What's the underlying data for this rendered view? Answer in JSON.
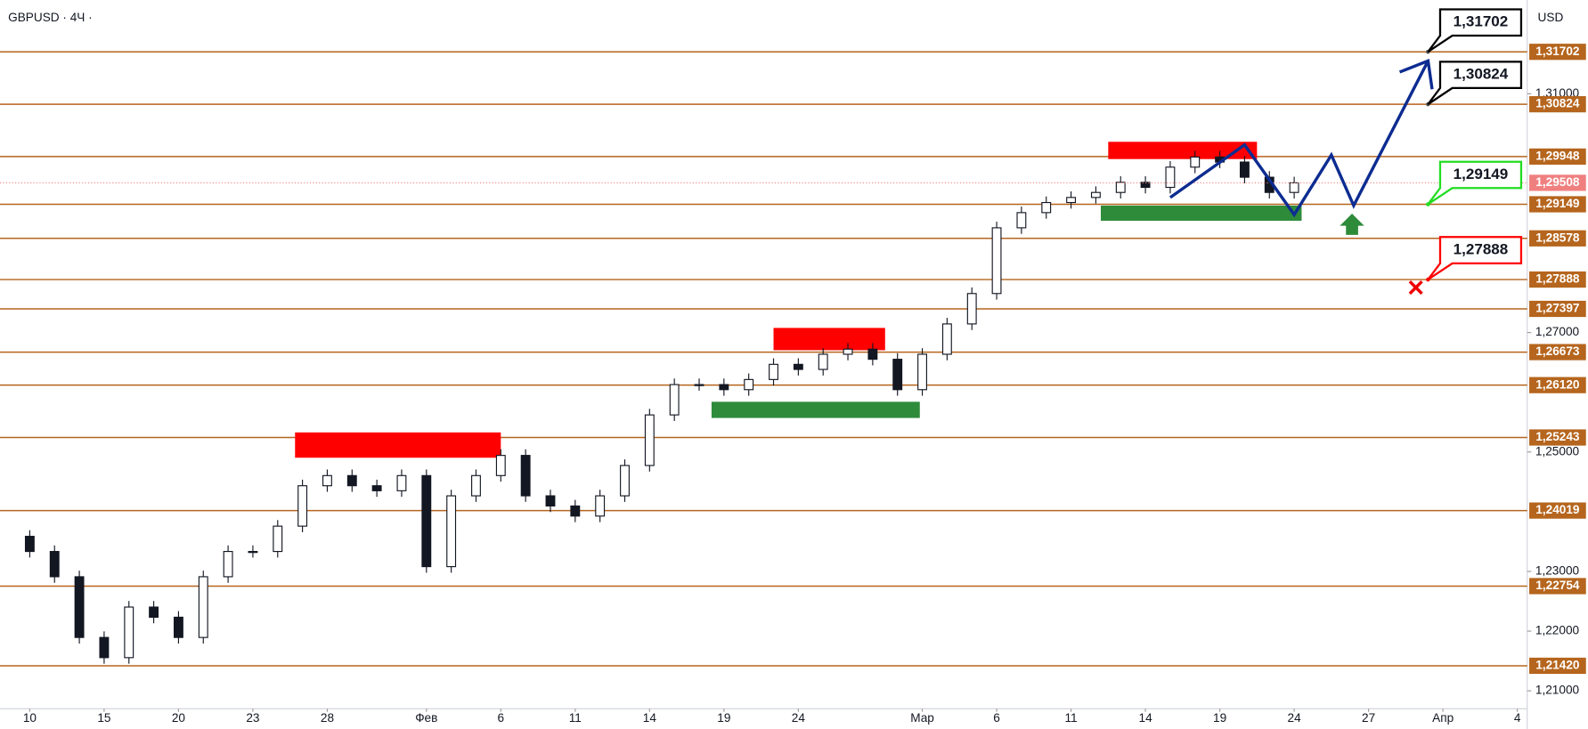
{
  "chart_data": {
    "type": "candlestick",
    "title": "GBPUSD · 4Ч ·",
    "currency": "USD",
    "x": [
      -1,
      0,
      1,
      2,
      3,
      4,
      5,
      6,
      7,
      8,
      9,
      10,
      11,
      12,
      13,
      14,
      15,
      16,
      17,
      18,
      19,
      20,
      21,
      22,
      23,
      24,
      25,
      26,
      27,
      28,
      29,
      30,
      31,
      32,
      33,
      34,
      35,
      36,
      37,
      38,
      39,
      40,
      41,
      42,
      43,
      44,
      45,
      46,
      47,
      48,
      49,
      50,
      51
    ],
    "close": [
      1.23588,
      1.23334,
      1.22911,
      1.21894,
      1.21556,
      1.22403,
      1.22233,
      1.21894,
      1.22911,
      1.23334,
      1.23334,
      1.23758,
      1.24435,
      1.24605,
      1.24435,
      1.24351,
      1.24605,
      1.2308,
      1.24266,
      1.24605,
      1.24943,
      1.24266,
      1.24096,
      1.23927,
      1.24266,
      1.24774,
      1.25621,
      1.26129,
      1.26129,
      1.26044,
      1.26214,
      1.26468,
      1.26383,
      1.26637,
      1.26722,
      1.26553,
      1.26044,
      1.26637,
      1.27145,
      1.27654,
      1.28755,
      1.29009,
      1.29178,
      1.29263,
      1.29347,
      1.29517,
      1.29432,
      1.29771,
      1.2994,
      1.29856,
      1.29602,
      1.29347,
      1.29508
    ],
    "up_color": "#ffffff",
    "down_color": "#131722",
    "xlim": [
      -1.2,
      60.4
    ],
    "ylim": [
      1.207,
      1.3257
    ],
    "xticks": [
      {
        "value": 0,
        "label": "10"
      },
      {
        "value": 3,
        "label": "15"
      },
      {
        "value": 6,
        "label": "20"
      },
      {
        "value": 9,
        "label": "23"
      },
      {
        "value": 12,
        "label": "28"
      },
      {
        "value": 16,
        "label": "Фев"
      },
      {
        "value": 19,
        "label": "6"
      },
      {
        "value": 22,
        "label": "11"
      },
      {
        "value": 25,
        "label": "14"
      },
      {
        "value": 28,
        "label": "19"
      },
      {
        "value": 31,
        "label": "24"
      },
      {
        "value": 36,
        "label": "Мар"
      },
      {
        "value": 39,
        "label": "6"
      },
      {
        "value": 42,
        "label": "11"
      },
      {
        "value": 45,
        "label": "14"
      },
      {
        "value": 48,
        "label": "19"
      },
      {
        "value": 51,
        "label": "24"
      },
      {
        "value": 54,
        "label": "27"
      },
      {
        "value": 57,
        "label": "Апр"
      },
      {
        "value": 60,
        "label": "4"
      }
    ],
    "yticks": [
      {
        "value": 1.31,
        "label": "1,31000"
      },
      {
        "value": 1.27,
        "label": "1,27000"
      },
      {
        "value": 1.25,
        "label": "1,25000"
      },
      {
        "value": 1.23,
        "label": "1,23000"
      },
      {
        "value": 1.22,
        "label": "1,22000"
      },
      {
        "value": 1.21,
        "label": "1,21000"
      }
    ],
    "level_color": "#b5651d",
    "levels": [
      {
        "value": 1.31702,
        "label": "1,31702"
      },
      {
        "value": 1.30824,
        "label": "1,30824"
      },
      {
        "value": 1.29948,
        "label": "1,29948"
      },
      {
        "value": 1.29149,
        "label": "1,29149"
      },
      {
        "value": 1.28578,
        "label": "1,28578"
      },
      {
        "value": 1.27888,
        "label": "1,27888"
      },
      {
        "value": 1.27397,
        "label": "1,27397"
      },
      {
        "value": 1.26673,
        "label": "1,26673"
      },
      {
        "value": 1.2612,
        "label": "1,26120"
      },
      {
        "value": 1.25243,
        "label": "1,25243"
      },
      {
        "value": 1.24019,
        "label": "1,24019"
      },
      {
        "value": 1.22754,
        "label": "1,22754"
      },
      {
        "value": 1.2142,
        "label": "1,21420"
      }
    ],
    "last_price": {
      "value": 1.29508,
      "label": "1,29508",
      "color": "#f08080"
    },
    "zones": [
      {
        "color": "#ff0000",
        "x": [
          10.7,
          19.0
        ],
        "y": [
          1.24904,
          1.25328
        ]
      },
      {
        "color": "#ff0000",
        "x": [
          30.0,
          34.5
        ],
        "y": [
          1.26705,
          1.27078
        ]
      },
      {
        "color": "#ff0000",
        "x": [
          43.5,
          49.5
        ],
        "y": [
          1.29906,
          1.30195
        ]
      },
      {
        "color": "#2e8b3a",
        "x": [
          27.5,
          35.9
        ],
        "y": [
          1.2557,
          1.25841
        ]
      },
      {
        "color": "#2e8b3a",
        "x": [
          43.2,
          51.3
        ],
        "y": [
          1.28873,
          1.29127
        ]
      }
    ],
    "forecast": {
      "color": "#0d2c91",
      "x": [
        46.0,
        49.0,
        51.0,
        52.5,
        53.4,
        56.4
      ],
      "y": [
        1.29263,
        1.30144,
        1.28975,
        1.29974,
        1.29127,
        1.3155
      ]
    },
    "callouts": [
      {
        "label": "1,31702",
        "value": 1.31702,
        "color": "#000000"
      },
      {
        "label": "1,30824",
        "value": 1.30824,
        "color": "#000000"
      },
      {
        "label": "1,29149",
        "value": 1.29149,
        "color": "#22dd22"
      },
      {
        "label": "1,27888",
        "value": 1.27888,
        "color": "#ff0000"
      }
    ]
  }
}
